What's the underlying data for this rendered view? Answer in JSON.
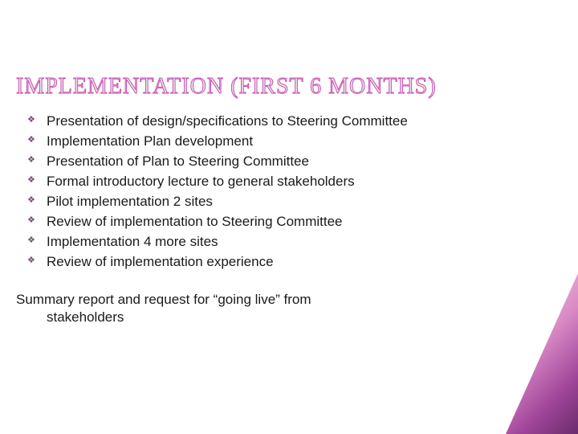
{
  "title": "IMPLEMENTATION (FIRST 6 MONTHS)",
  "bullets": [
    "Presentation of design/specifications to Steering Committee",
    "Implementation Plan development",
    "Presentation of Plan to Steering Committee",
    "Formal introductory lecture to general stakeholders",
    "Pilot implementation 2 sites",
    "Review of implementation to Steering Committee",
    "Implementation 4 more sites",
    "Review of implementation experience"
  ],
  "summary_line1": "Summary report and request for “going live” from",
  "summary_line2": "stakeholders",
  "style": {
    "slide_width": 720,
    "slide_height": 540,
    "background_color": "#ffffff",
    "title_outline_color": "#c94fb3",
    "title_fill_color": "#e8e8e8",
    "title_fontsize": 28,
    "title_font_family": "Georgia",
    "body_fontsize": 17,
    "body_color": "#1a1a1a",
    "bullet_marker": "❖",
    "bullet_color": "#7a4a7a",
    "accent_gradient": [
      "#f4d5ec",
      "#d989c5",
      "#a0459a",
      "#6a2c6a"
    ]
  }
}
